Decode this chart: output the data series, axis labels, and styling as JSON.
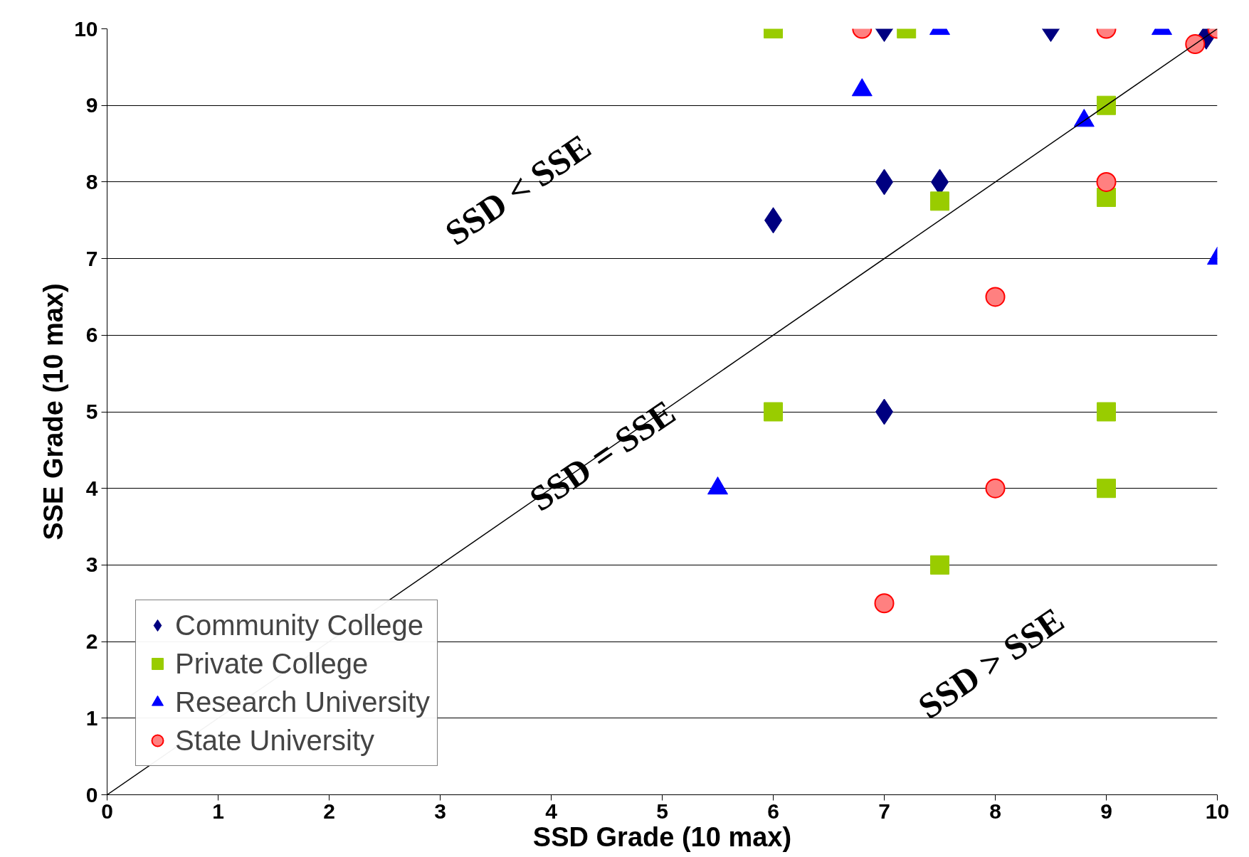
{
  "chart_data": {
    "type": "scatter",
    "xlabel": "SSD Grade (10 max)",
    "ylabel": "SSE Grade (10 max)",
    "xlim": [
      0,
      10
    ],
    "ylim": [
      0,
      10
    ],
    "xticks": [
      0,
      1,
      2,
      3,
      4,
      5,
      6,
      7,
      8,
      9,
      10
    ],
    "yticks": [
      0,
      1,
      2,
      3,
      4,
      5,
      6,
      7,
      8,
      9,
      10
    ],
    "grid": "y",
    "legend": "bottom left",
    "series": [
      {
        "name": "Community College",
        "color": "#000080",
        "marker": "diamond",
        "x": [
          6,
          7,
          7,
          7.5,
          8.5,
          9.9,
          7
        ],
        "values": [
          7.5,
          10,
          8,
          8,
          10,
          9.9,
          5
        ]
      },
      {
        "name": "Private College",
        "color": "#99cc00",
        "marker": "square",
        "x": [
          6,
          7.2,
          9,
          7.5,
          9,
          6,
          9,
          9,
          7.5
        ],
        "values": [
          10,
          10,
          9,
          7.75,
          7.8,
          5,
          5,
          4,
          3
        ]
      },
      {
        "name": "Research University",
        "color": "#0000ff",
        "marker": "triangle",
        "x": [
          7.5,
          9.5,
          6.8,
          8.8,
          10,
          5.5
        ],
        "values": [
          10,
          10,
          9.2,
          8.8,
          7,
          4
        ]
      },
      {
        "name": "State University",
        "color": "#ff8080",
        "marker": "circle",
        "x": [
          6.8,
          9,
          10,
          9.8,
          9,
          8,
          8,
          7
        ],
        "values": [
          10,
          10,
          10,
          9.8,
          8,
          6.5,
          4,
          2.5
        ]
      },
      {
        "type": "line",
        "color": "#000000",
        "marker": "none",
        "x": [
          0,
          10
        ],
        "values": [
          0,
          10
        ]
      }
    ],
    "annotations": [
      "SSD < SSE",
      {
        "text": "SSD = SSE",
        "x": 4.46,
        "y": 4.43
      },
      "SSD > SSE"
    ]
  }
}
